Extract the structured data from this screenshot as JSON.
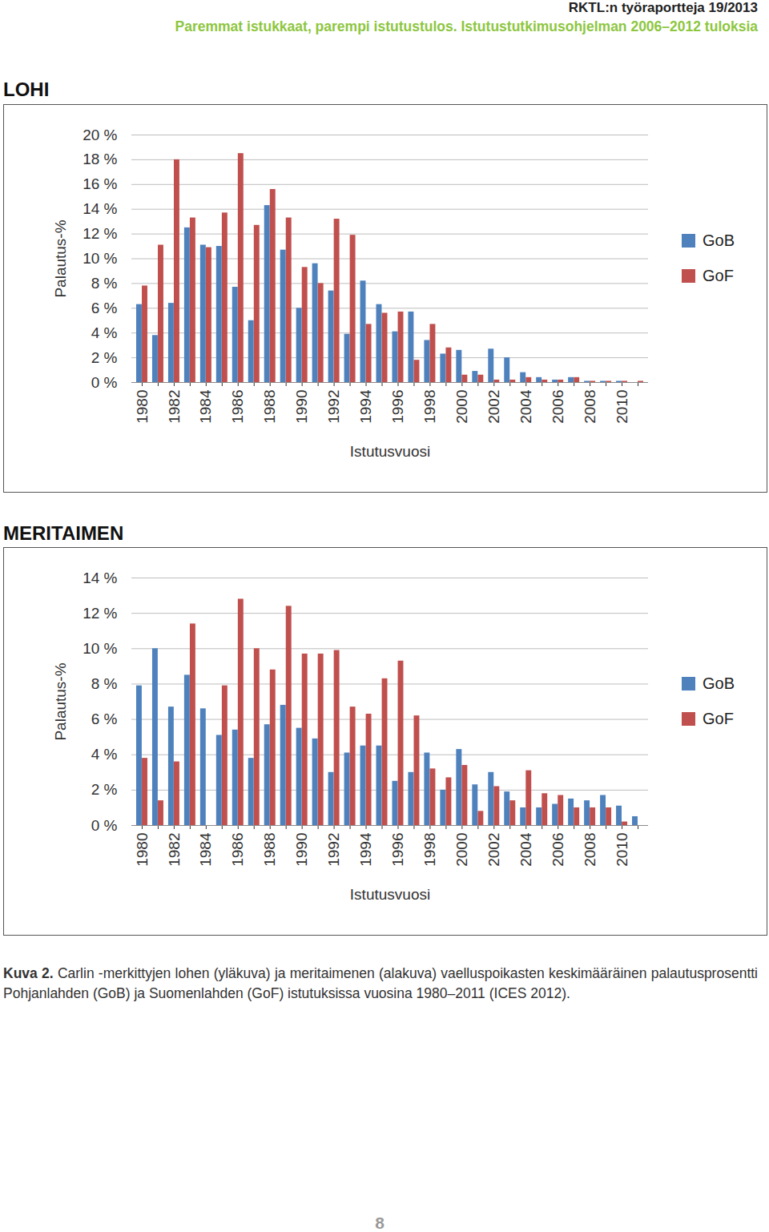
{
  "header": {
    "report": "RKTL:n työraportteja 19/2013",
    "subtitle": "Paremmat istukkaat, parempi istutustulos. Istutustutkimusohjelman 2006–2012 tuloksia"
  },
  "chart_data": [
    {
      "type": "bar",
      "title": "LOHI",
      "categories": [
        "1980",
        null,
        "1982",
        null,
        "1984",
        null,
        "1986",
        null,
        "1988",
        null,
        "1990",
        null,
        "1992",
        null,
        "1994",
        null,
        "1996",
        null,
        "1998",
        null,
        "2000",
        null,
        "2002",
        null,
        "2004",
        null,
        "2006",
        null,
        "2008",
        null,
        "2010",
        null
      ],
      "series": [
        {
          "name": "GoB",
          "color": "#4f81bd",
          "values": [
            6.3,
            3.8,
            6.4,
            12.5,
            11.1,
            11.0,
            7.7,
            5.0,
            14.3,
            10.7,
            6.0,
            9.6,
            7.4,
            3.9,
            8.2,
            6.3,
            4.1,
            5.7,
            3.4,
            2.3,
            2.6,
            0.9,
            2.7,
            2.0,
            0.8,
            0.4,
            0.2,
            0.4,
            0.1,
            0.1,
            0.1,
            0
          ]
        },
        {
          "name": "GoF",
          "color": "#c0504d",
          "values": [
            7.8,
            11.1,
            18.0,
            13.3,
            10.9,
            13.7,
            18.5,
            12.7,
            15.6,
            13.3,
            9.3,
            8.0,
            13.2,
            11.9,
            4.7,
            5.6,
            5.7,
            1.8,
            4.7,
            2.8,
            0.6,
            0.6,
            0.2,
            0.2,
            0.4,
            0.2,
            0.2,
            0.4,
            0.1,
            0.1,
            0.1,
            0.1
          ]
        }
      ],
      "x_label": "Istutusvuosi",
      "y_label": "Palautus-%",
      "ylim": [
        0,
        20
      ],
      "yticks": [
        {
          "value": 0,
          "label": "0 %"
        },
        {
          "value": 2,
          "label": "2 %"
        },
        {
          "value": 4,
          "label": "4 %"
        },
        {
          "value": 6,
          "label": "6 %"
        },
        {
          "value": 8,
          "label": "8 %"
        },
        {
          "value": 10,
          "label": "10 %"
        },
        {
          "value": 12,
          "label": "12 %"
        },
        {
          "value": 14,
          "label": "14 %"
        },
        {
          "value": 16,
          "label": "16 %"
        },
        {
          "value": 18,
          "label": "18 %"
        },
        {
          "value": 20,
          "label": "20 %"
        }
      ],
      "grid": true,
      "legend": "right"
    },
    {
      "type": "bar",
      "title": "MERITAIMEN",
      "categories": [
        "1980",
        null,
        "1982",
        null,
        "1984",
        null,
        "1986",
        null,
        "1988",
        null,
        "1990",
        null,
        "1992",
        null,
        "1994",
        null,
        "1996",
        null,
        "1998",
        null,
        "2000",
        null,
        "2002",
        null,
        "2004",
        null,
        "2006",
        null,
        "2008",
        null,
        "2010",
        null
      ],
      "series": [
        {
          "name": "GoB",
          "color": "#4f81bd",
          "values": [
            7.9,
            10.0,
            6.7,
            8.5,
            6.6,
            5.1,
            5.4,
            3.8,
            5.7,
            6.8,
            5.5,
            4.9,
            3.0,
            4.1,
            4.5,
            4.5,
            2.5,
            3.0,
            4.1,
            2.0,
            4.3,
            2.3,
            3.0,
            1.9,
            1.0,
            1.0,
            1.2,
            1.5,
            1.4,
            1.7,
            1.1,
            0.5
          ]
        },
        {
          "name": "GoF",
          "color": "#c0504d",
          "values": [
            3.8,
            1.4,
            3.6,
            11.4,
            0,
            7.9,
            12.8,
            10.0,
            8.8,
            12.4,
            9.7,
            9.7,
            9.9,
            6.7,
            6.3,
            8.3,
            9.3,
            6.2,
            3.2,
            2.7,
            3.4,
            0.8,
            2.2,
            1.4,
            3.1,
            1.8,
            1.7,
            1.0,
            1.0,
            1.0,
            0.2,
            0
          ]
        }
      ],
      "x_label": "Istutusvuosi",
      "y_label": "Palautus-%",
      "ylim": [
        0,
        14
      ],
      "yticks": [
        {
          "value": 0,
          "label": "0 %"
        },
        {
          "value": 2,
          "label": "2 %"
        },
        {
          "value": 4,
          "label": "4 %"
        },
        {
          "value": 6,
          "label": "6 %"
        },
        {
          "value": 8,
          "label": "8 %"
        },
        {
          "value": 10,
          "label": "10 %"
        },
        {
          "value": 12,
          "label": "12 %"
        },
        {
          "value": 14,
          "label": "14 %"
        }
      ],
      "grid": true,
      "legend": "right"
    }
  ],
  "caption": {
    "label": "Kuva 2.",
    "text": "Carlin -merkittyjen lohen (yläkuva) ja meritaimenen (alakuva) vaelluspoikasten keskimääräinen palautusprosentti Pohjanlahden (GoB) ja Suomenlahden (GoF) istutuksissa vuosina 1980–2011 (ICES 2012)."
  },
  "page_number": "8"
}
